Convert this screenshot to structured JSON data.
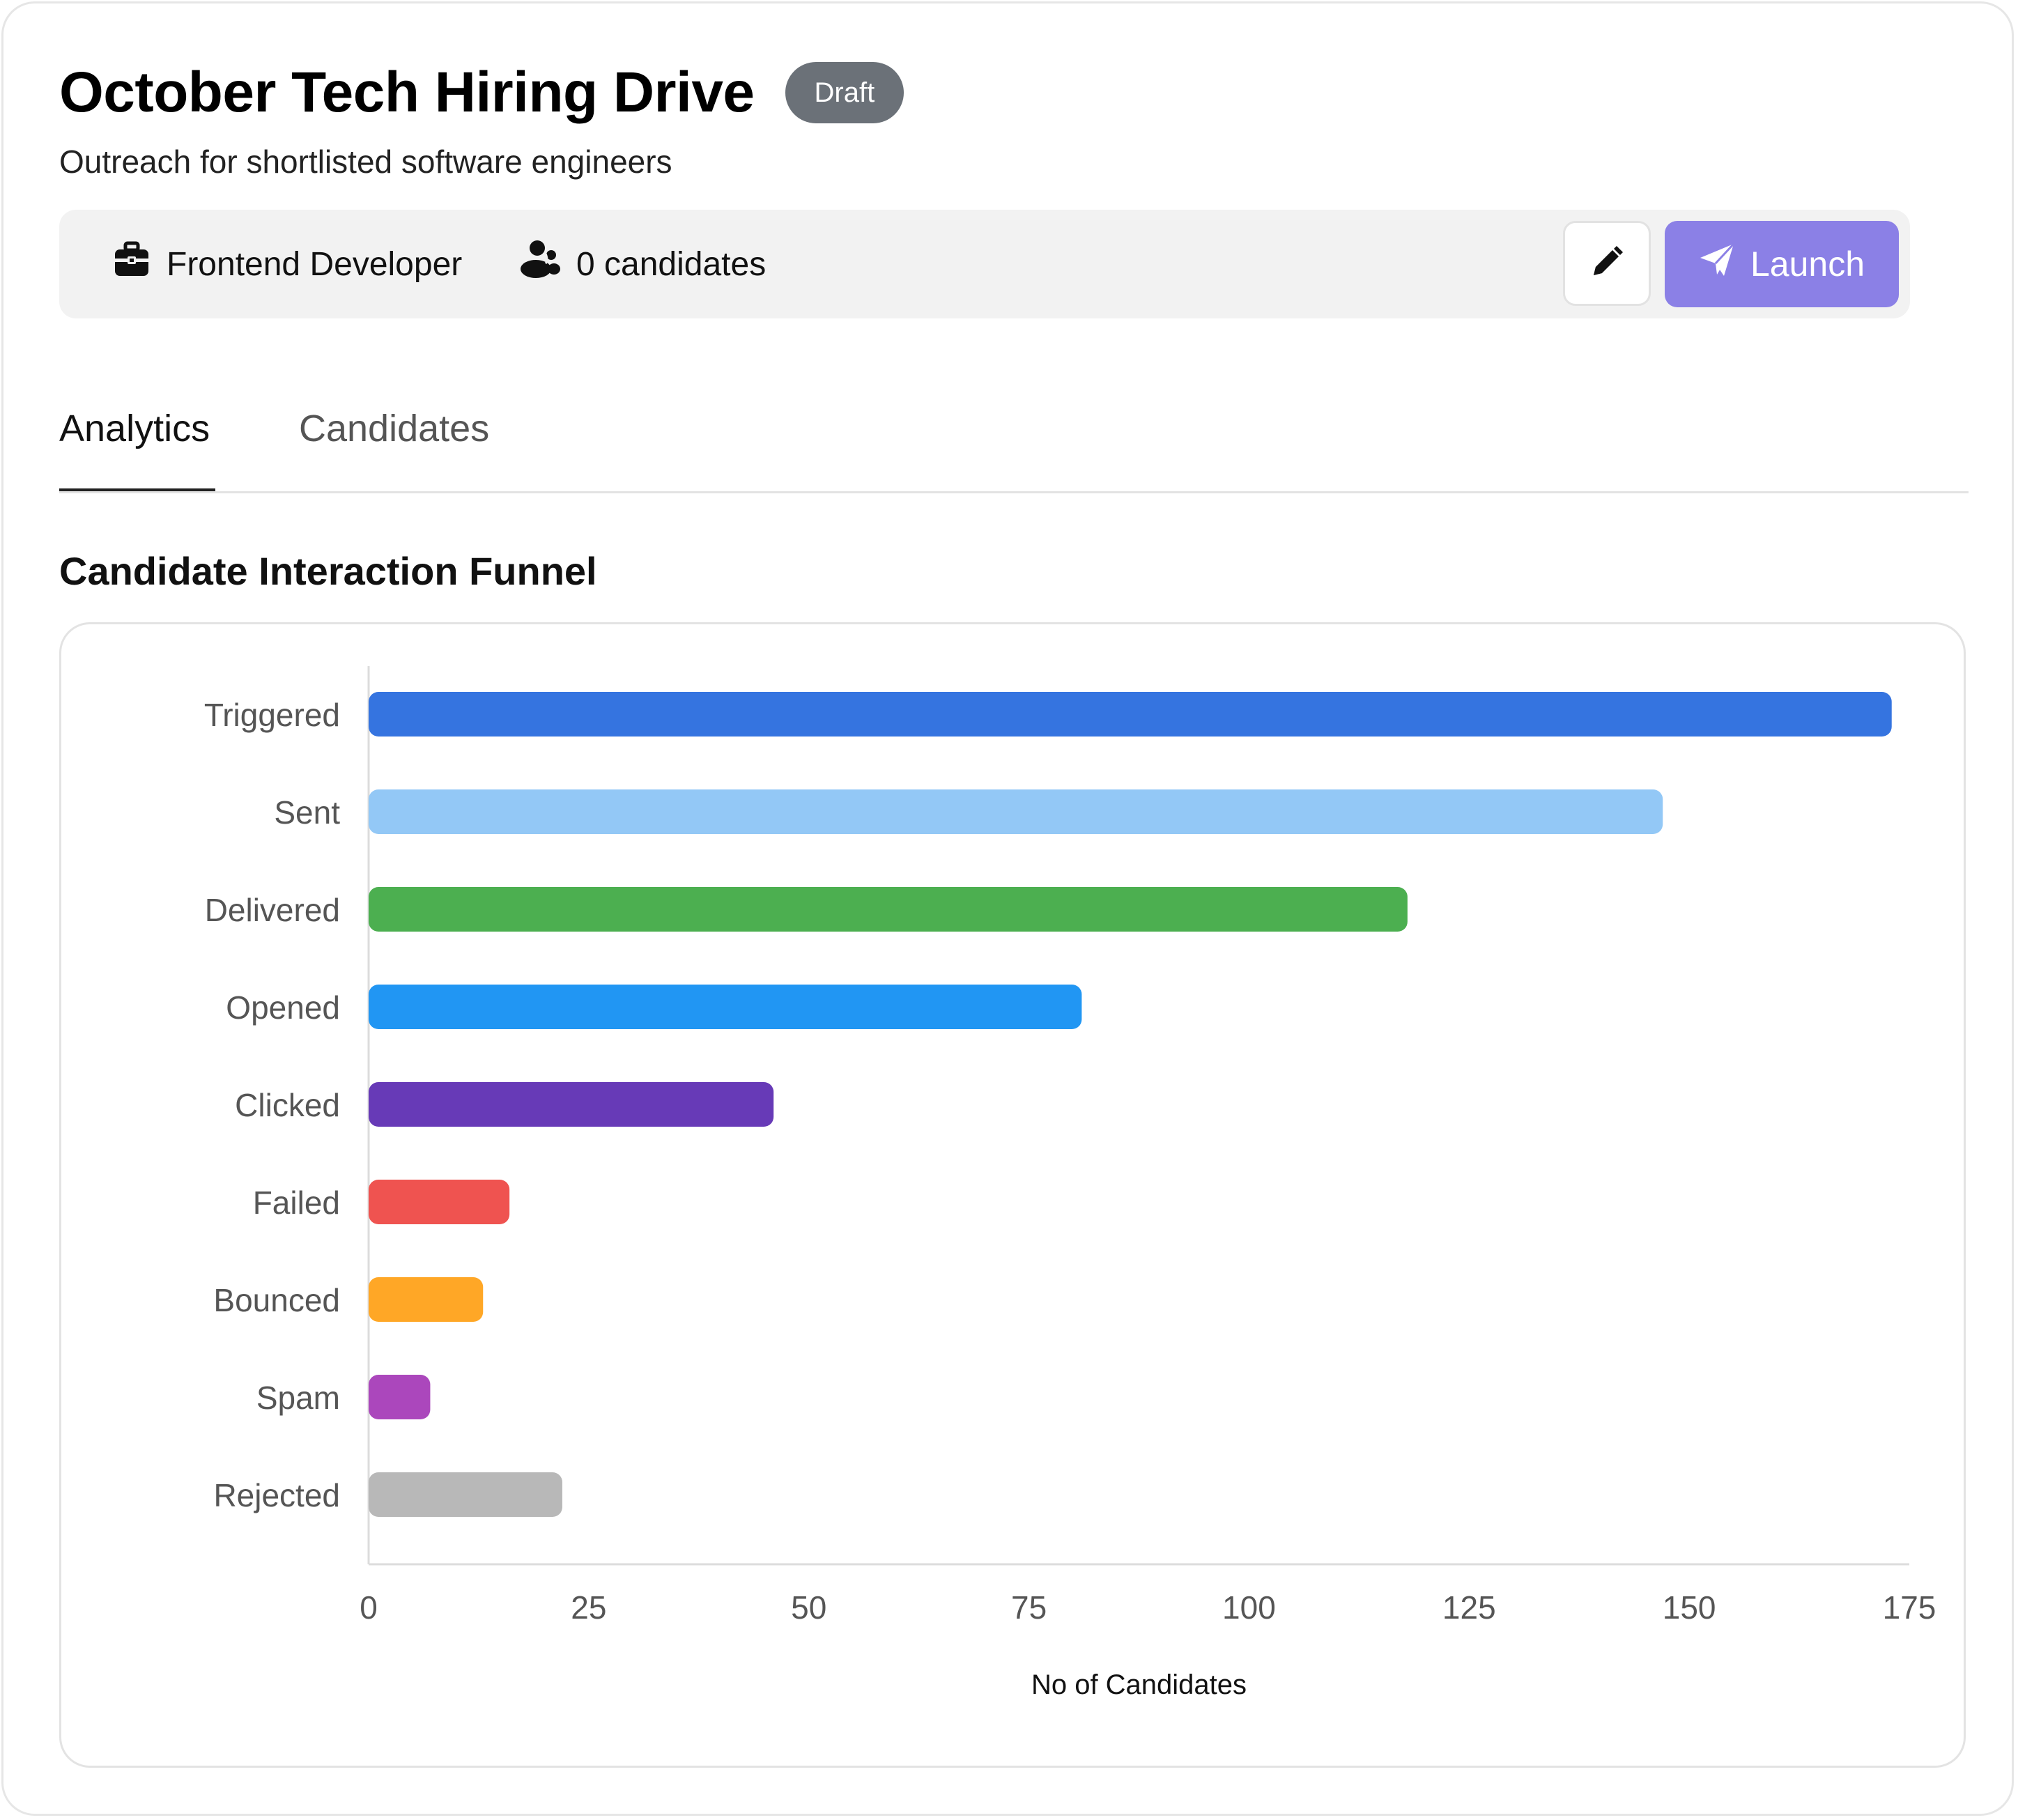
{
  "header": {
    "title": "October Tech Hiring Drive",
    "badge": "Draft",
    "subtitle": "Outreach for shortlisted software engineers"
  },
  "infobar": {
    "role": "Frontend Developer",
    "candidates": "0 candidates",
    "launch_label": "Launch"
  },
  "tabs": [
    {
      "label": "Analytics",
      "active": true
    },
    {
      "label": "Candidates",
      "active": false
    }
  ],
  "section_title": "Candidate Interaction Funnel",
  "chart_data": {
    "type": "bar",
    "orientation": "horizontal",
    "categories": [
      "Triggered",
      "Sent",
      "Delivered",
      "Opened",
      "Clicked",
      "Failed",
      "Bounced",
      "Spam",
      "Rejected"
    ],
    "values": [
      173,
      147,
      118,
      81,
      46,
      16,
      13,
      7,
      22
    ],
    "colors": [
      "#3574e0",
      "#93c8f6",
      "#4caf50",
      "#2196f3",
      "#673ab7",
      "#ef5350",
      "#ffa726",
      "#ab47bc",
      "#b8b8b8"
    ],
    "xlabel": "No of Candidates",
    "ylabel": "",
    "xlim": [
      0,
      175
    ],
    "xticks": [
      0,
      25,
      50,
      75,
      100,
      125,
      150,
      175
    ],
    "grid": false
  }
}
